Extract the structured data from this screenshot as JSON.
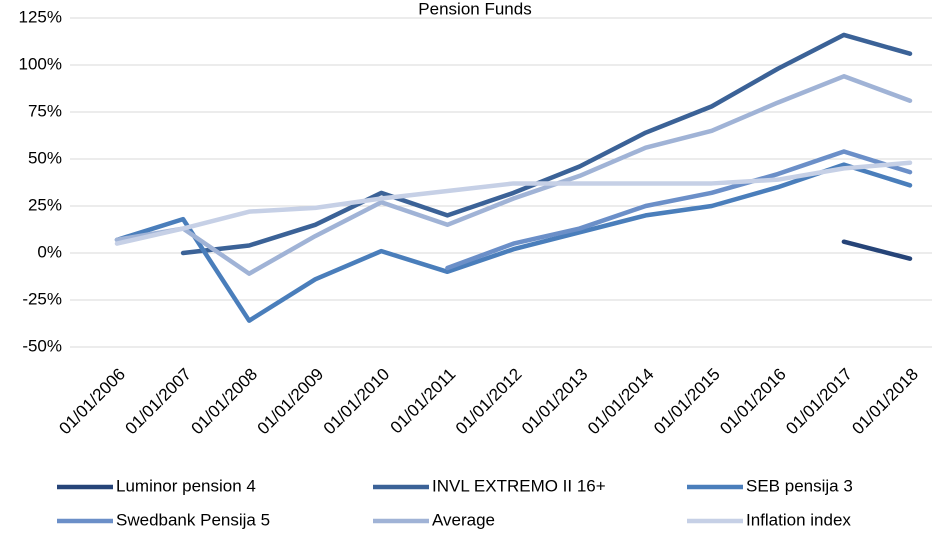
{
  "chart_data": {
    "type": "line",
    "title": "Pension Funds",
    "categories": [
      "01/01/2006",
      "01/01/2007",
      "01/01/2008",
      "01/01/2009",
      "01/01/2010",
      "01/01/2011",
      "01/01/2012",
      "01/01/2013",
      "01/01/2014",
      "01/01/2015",
      "01/01/2016",
      "01/01/2017",
      "01/01/2018"
    ],
    "series": [
      {
        "name": "Luminor pension 4",
        "color": "#264478",
        "values": [
          null,
          null,
          null,
          null,
          null,
          null,
          null,
          null,
          null,
          null,
          null,
          6,
          -3
        ]
      },
      {
        "name": "INVL EXTREMO II 16+",
        "color": "#3b6297",
        "values": [
          null,
          0,
          4,
          15,
          32,
          20,
          32,
          46,
          64,
          78,
          98,
          116,
          106
        ]
      },
      {
        "name": "SEB pensija 3",
        "color": "#4a7ebb",
        "values": [
          7,
          18,
          -36,
          -14,
          1,
          -10,
          2,
          11,
          20,
          25,
          35,
          47,
          36
        ]
      },
      {
        "name": "Swedbank Pensija 5",
        "color": "#6b8fc8",
        "values": [
          null,
          null,
          null,
          null,
          null,
          -8,
          5,
          13,
          25,
          32,
          42,
          54,
          43
        ]
      },
      {
        "name": "Average",
        "color": "#a0b3d6",
        "values": [
          7,
          13,
          -11,
          9,
          27,
          15,
          29,
          41,
          56,
          65,
          80,
          94,
          81
        ]
      },
      {
        "name": "Inflation index",
        "color": "#c6d0e6",
        "values": [
          5,
          13,
          22,
          24,
          29,
          33,
          37,
          37,
          37,
          37,
          39,
          45,
          48
        ]
      }
    ],
    "ylim": [
      -50,
      125
    ],
    "yticks": [
      {
        "value": -50,
        "label": "-50%"
      },
      {
        "value": -25,
        "label": "-25%"
      },
      {
        "value": 0,
        "label": "0%"
      },
      {
        "value": 25,
        "label": "25%"
      },
      {
        "value": 50,
        "label": "50%"
      },
      {
        "value": 75,
        "label": "75%"
      },
      {
        "value": 100,
        "label": "100%"
      },
      {
        "value": 125,
        "label": "125%"
      }
    ],
    "grid": true,
    "legend": "bottom"
  }
}
